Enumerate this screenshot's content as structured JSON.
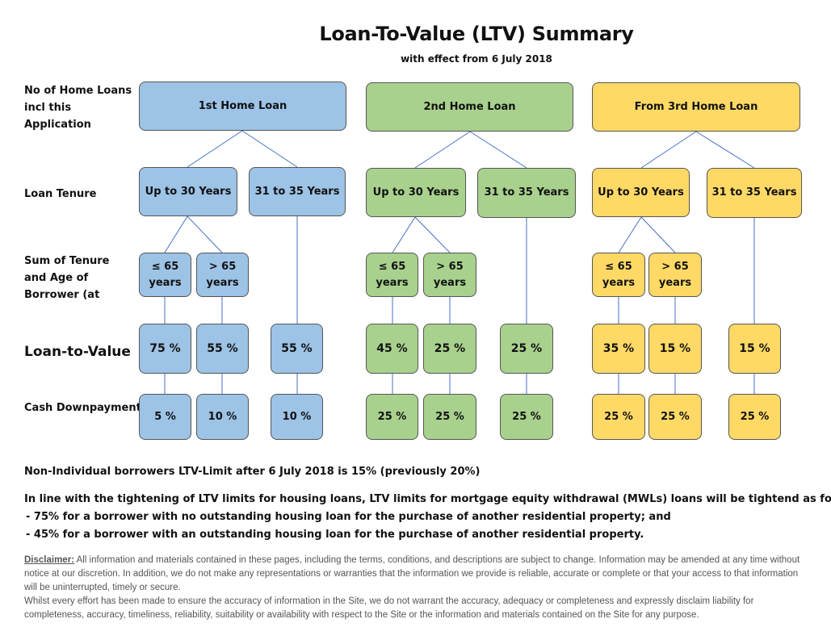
{
  "title": "Loan-To-Value (LTV) Summary",
  "subtitle": "with effect from 6 July 2018",
  "row_labels": {
    "loans": "No of Home Loans incl this Application",
    "tenure": "Loan Tenure",
    "sum": "Sum of Tenure and Age of Borrower (at",
    "ltv": "Loan-to-Value",
    "cash": "Cash Downpayment"
  },
  "loans": [
    {
      "label": "1st Home Loan",
      "color": "#9dc3e6",
      "tenures": [
        {
          "label": "Up to 30 Years",
          "splits": [
            {
              "label": "≤ 65 years",
              "ltv": "75 %",
              "cash": "5 %"
            },
            {
              "label": "> 65 years",
              "ltv": "55 %",
              "cash": "10 %"
            }
          ]
        },
        {
          "label": "31 to 35 Years",
          "ltv": "55 %",
          "cash": "10 %"
        }
      ]
    },
    {
      "label": "2nd Home Loan",
      "color": "#a9d18e",
      "tenures": [
        {
          "label": "Up to 30 Years",
          "splits": [
            {
              "label": "≤ 65 years",
              "ltv": "45 %",
              "cash": "25 %"
            },
            {
              "label": "> 65 years",
              "ltv": "25 %",
              "cash": "25 %"
            }
          ]
        },
        {
          "label": "31 to 35 Years",
          "ltv": "25 %",
          "cash": "25 %"
        }
      ]
    },
    {
      "label": "From 3rd Home Loan",
      "color": "#ffd966",
      "tenures": [
        {
          "label": "Up to 30 Years",
          "splits": [
            {
              "label": "≤ 65 years",
              "ltv": "35 %",
              "cash": "25 %"
            },
            {
              "label": "> 65 years",
              "ltv": "15 %",
              "cash": "25 %"
            }
          ]
        },
        {
          "label": "31 to 35 Years",
          "ltv": "15 %",
          "cash": "25 %"
        }
      ]
    }
  ],
  "notes": {
    "non_individual": "Non-Individual borrowers LTV-Limit after 6 July 2018 is 15% (previously 20%)",
    "mwl_intro": "In line with the tightening of LTV limits for housing loans, LTV limits for mortgage equity withdrawal (MWLs) loans will be tightend as follows:",
    "mwl_bullets": [
      "- 75% for a borrower with no outstanding housing loan for the purchase of another residential property; and",
      "- 45% for a borrower with an outstanding housing loan for the purchase of another residential property."
    ]
  },
  "disclaimer": {
    "label": "Disclaimer:",
    "text1": " All information and materials contained in these pages, including the terms, conditions, and descriptions are subject to change. Information may be amended at any time without notice at our discretion. In addition, we do not make any representations or warranties that the information we provide is reliable, accurate or complete or that your access to that information will be uninterrupted, timely or secure.",
    "text2": "Whilst every effort has been made to ensure the accuracy of information in the Site, we do not warrant the accuracy, adequacy or completeness and expressly disclaim liability for completeness, accuracy, timeliness, reliability, suitability or availability with respect to the Site or the information and materials contained on the Site for any purpose."
  }
}
